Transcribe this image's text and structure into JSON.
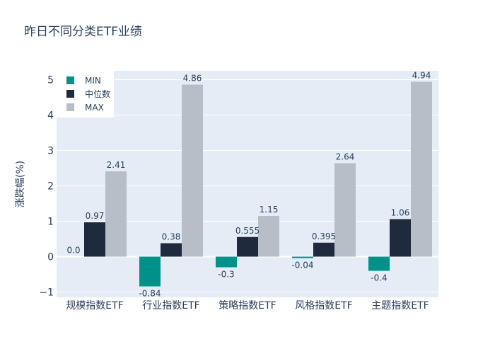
{
  "chart_data": {
    "type": "bar",
    "title": "昨日不同分类ETF业绩",
    "xlabel": "",
    "ylabel": "涨跌幅(%)",
    "categories": [
      "规模指数ETF",
      "行业指数ETF",
      "策略指数ETF",
      "风格指数ETF",
      "主题指数ETF"
    ],
    "series": [
      {
        "name": "MIN",
        "color": "#00918a",
        "values": [
          0.0,
          -0.84,
          -0.3,
          -0.04,
          -0.4
        ],
        "labels": [
          "0.0",
          "-0.84",
          "-0.3",
          "-0.04",
          "-0.4"
        ]
      },
      {
        "name": "中位数",
        "color": "#1f2a3c",
        "values": [
          0.97,
          0.38,
          0.555,
          0.395,
          1.06
        ],
        "labels": [
          "0.97",
          "0.38",
          "0.555",
          "0.395",
          "1.06"
        ]
      },
      {
        "name": "MAX",
        "color": "#b7bec7",
        "values": [
          2.41,
          4.86,
          1.15,
          2.64,
          4.94
        ],
        "labels": [
          "2.41",
          "4.86",
          "1.15",
          "2.64",
          "4.94"
        ]
      }
    ],
    "ylim": [
      -1.15,
      5.25
    ],
    "yticks": [
      -1,
      0,
      1,
      2,
      3,
      4,
      5
    ],
    "ytick_labels": [
      "−1",
      "0",
      "1",
      "2",
      "3",
      "4",
      "5"
    ],
    "grid": true,
    "legend_position": "top-left",
    "background_color": "#e5ecf6"
  }
}
